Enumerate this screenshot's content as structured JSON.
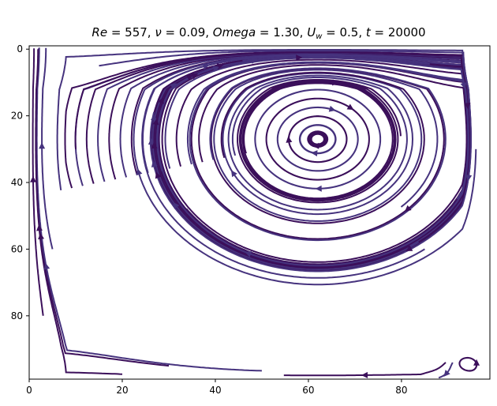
{
  "chart_data": {
    "type": "streamplot",
    "title_parts": {
      "re_sym": "Re",
      "re_val": " = 557, ",
      "nu_sym": "ν",
      "nu_val": " = 0.09, ",
      "omega_sym": "Omega",
      "omega_val": " = 1.30, ",
      "uw_sym": "U",
      "uw_sub": "w",
      "uw_val": " = 0.5, ",
      "t_sym": "t",
      "t_val": " = 20000"
    },
    "xlim": [
      0,
      99
    ],
    "ylim": [
      99,
      -1
    ],
    "y_inverted": true,
    "x_ticks": [
      0,
      20,
      40,
      60,
      80
    ],
    "x_tick_labels": [
      "0",
      "20",
      "40",
      "60",
      "80"
    ],
    "y_ticks": [
      0,
      20,
      40,
      60,
      80
    ],
    "y_tick_labels": [
      "0",
      "20",
      "40",
      "60",
      "80"
    ],
    "grid": false,
    "line_color_dark": "#3b0f5a",
    "line_color_light": "#46337e",
    "main_vortex_center": [
      62,
      27
    ],
    "secondary_vortex_center": [
      94,
      94
    ],
    "lid_velocity_direction": "+x along top wall"
  }
}
